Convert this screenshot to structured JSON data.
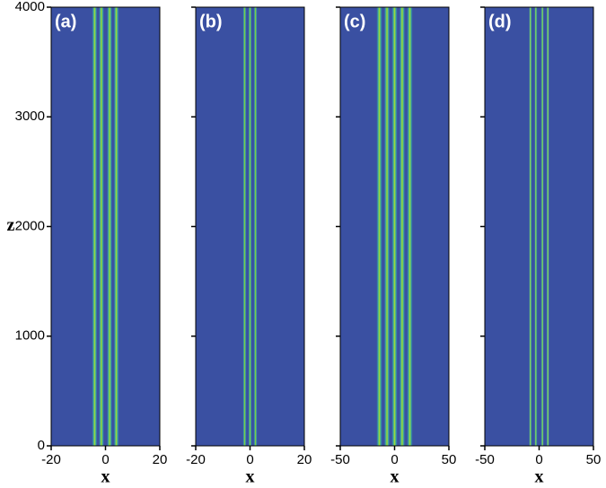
{
  "chart_data": [
    {
      "type": "heatmap",
      "label": "(a)",
      "xlabel": "x",
      "ylabel": "z",
      "ytick_labels": true,
      "xlim": [
        -20,
        20
      ],
      "xticks": [
        -20,
        0,
        20
      ],
      "ylim": [
        0,
        4000
      ],
      "yticks": [
        0,
        1000,
        2000,
        3000,
        4000
      ],
      "stripes": [
        -4,
        -1.5,
        1.5,
        4
      ],
      "stripe_width": 2.2,
      "background": "#3a50a2"
    },
    {
      "type": "heatmap",
      "label": "(b)",
      "xlabel": "x",
      "ytick_labels": false,
      "xlim": [
        -20,
        20
      ],
      "xticks": [
        -20,
        0,
        20
      ],
      "ylim": [
        0,
        4000
      ],
      "yticks": [
        0,
        1000,
        2000,
        3000,
        4000
      ],
      "stripes": [
        -2,
        0,
        2
      ],
      "stripe_width": 1.4,
      "background": "#3a50a2"
    },
    {
      "type": "heatmap",
      "label": "(c)",
      "xlabel": "x",
      "ytick_labels": false,
      "xlim": [
        -50,
        50
      ],
      "xticks": [
        -50,
        0,
        50
      ],
      "ylim": [
        0,
        4000
      ],
      "yticks": [
        0,
        1000,
        2000,
        3000,
        4000
      ],
      "stripes": [
        -14,
        -7,
        0,
        7,
        14
      ],
      "stripe_width": 6,
      "background": "#3a50a2"
    },
    {
      "type": "heatmap",
      "label": "(d)",
      "xlabel": "x",
      "ytick_labels": false,
      "xlim": [
        -50,
        50
      ],
      "xticks": [
        -50,
        0,
        50
      ],
      "ylim": [
        0,
        4000
      ],
      "yticks": [
        0,
        1000,
        2000,
        3000,
        4000
      ],
      "stripes": [
        -8,
        -3,
        3,
        8
      ],
      "stripe_width": 3,
      "background": "#3a50a2"
    }
  ]
}
